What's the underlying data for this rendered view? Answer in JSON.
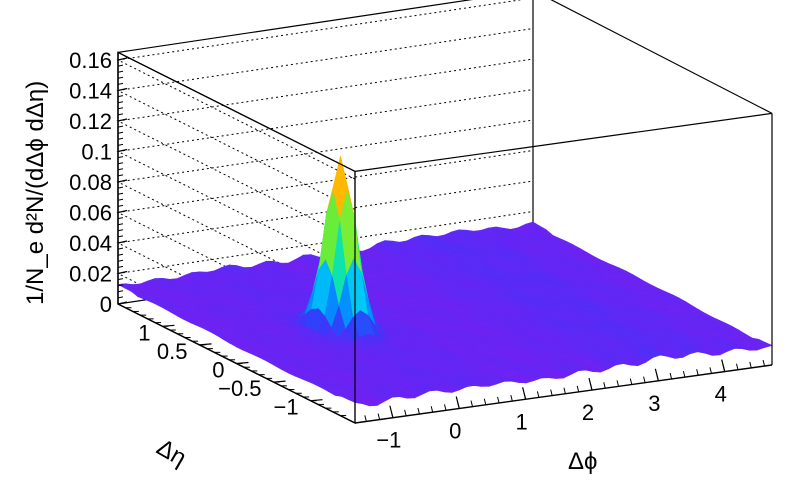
{
  "chart_data": {
    "type": "surface3d",
    "title": "",
    "xlabel": "Δϕ",
    "ylabel": "Δη",
    "zlabel": "1/N_e d²N/(dΔϕ dΔη)",
    "xlim": [
      -1.5708,
      4.7124
    ],
    "ylim": [
      -1.6,
      1.6
    ],
    "zlim": [
      0,
      0.165
    ],
    "x_ticks": [
      "−1",
      "0",
      "1",
      "2",
      "3",
      "4"
    ],
    "y_ticks": [
      "1",
      "0.5",
      "0",
      "−0.5",
      "−1"
    ],
    "z_ticks": [
      "0",
      "0.02",
      "0.04",
      "0.06",
      "0.08",
      "0.1",
      "0.12",
      "0.14",
      "0.16"
    ],
    "grid": "dotted z-gridlines on back walls",
    "colormap": "rainbow (violet low → red high)",
    "peak": {
      "x": 0,
      "y": 0,
      "z": 0.125
    },
    "baseline": {
      "near_side_z": 0.012,
      "away_side_z": 0.014
    },
    "away_side_ridge": {
      "x": 3.14,
      "z_excess": 0.003,
      "note": "broad in Δη"
    },
    "colors": {
      "low": "#7a1ef2",
      "mid": "#19e65a",
      "high": "#e5001a"
    }
  }
}
